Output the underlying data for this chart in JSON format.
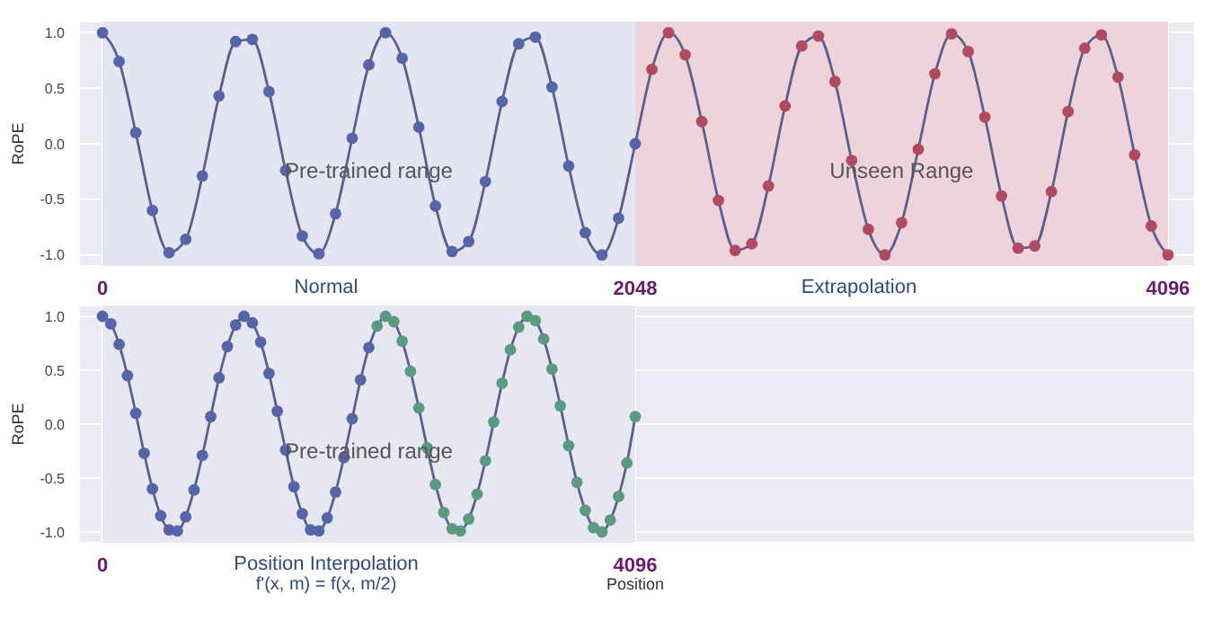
{
  "chart_data": [
    {
      "type": "scatter",
      "ylabel": "RoPE",
      "xlim": [
        -90,
        4200
      ],
      "xticks": [
        0,
        2048,
        4096
      ],
      "ylim": [
        -1.1,
        1.1
      ],
      "yticks": [
        {
          "value": -1,
          "label": "-1.0"
        },
        {
          "value": -0.5,
          "label": "-0.5"
        },
        {
          "value": 0,
          "label": "0.0"
        },
        {
          "value": 0.5,
          "label": "0.5"
        },
        {
          "value": 1,
          "label": "1.0"
        }
      ],
      "grid": true,
      "marker": "circle",
      "bands": [
        {
          "axis": "x",
          "from": 0,
          "to": 2048,
          "label": "Pre-trained range",
          "color": "#e3e5f2"
        },
        {
          "axis": "x",
          "from": 2048,
          "to": 4096,
          "label": "Unseen Range",
          "color": "#efd3da"
        }
      ],
      "annotations": [
        "Normal",
        "Extrapolation"
      ],
      "series": [
        {
          "type": "line",
          "marker": "none",
          "color": "#59608f",
          "x": [
            0,
            64,
            128,
            192,
            256,
            320,
            384,
            448,
            512,
            576,
            640,
            704,
            768,
            832,
            896,
            960,
            1024,
            1088,
            1152,
            1216,
            1280,
            1344,
            1408,
            1472,
            1536,
            1600,
            1664,
            1728,
            1792,
            1856,
            1920,
            1984,
            2048,
            2112,
            2176,
            2240,
            2304,
            2368,
            2432,
            2496,
            2560,
            2624,
            2688,
            2752,
            2816,
            2880,
            2944,
            3008,
            3072,
            3136,
            3200,
            3264,
            3328,
            3392,
            3456,
            3520,
            3584,
            3648,
            3712,
            3776,
            3840,
            3904,
            3968,
            4032,
            4096
          ],
          "values": [
            1,
            0.74,
            0.1,
            -0.6,
            -0.98,
            -0.86,
            -0.29,
            0.43,
            0.92,
            0.94,
            0.47,
            -0.24,
            -0.83,
            -0.99,
            -0.63,
            0.05,
            0.71,
            1.0,
            0.77,
            0.15,
            -0.56,
            -0.97,
            -0.88,
            -0.34,
            0.38,
            0.9,
            0.96,
            0.51,
            -0.2,
            -0.8,
            -1.0,
            -0.67,
            0.0,
            0.67,
            1.0,
            0.8,
            0.2,
            -0.51,
            -0.96,
            -0.9,
            -0.38,
            0.34,
            0.88,
            0.97,
            0.56,
            -0.15,
            -0.77,
            -1.0,
            -0.71,
            -0.05,
            0.63,
            0.99,
            0.83,
            0.24,
            -0.47,
            -0.94,
            -0.92,
            -0.43,
            0.29,
            0.86,
            0.98,
            0.6,
            -0.1,
            -0.74,
            -1
          ]
        },
        {
          "color": "#5565a8",
          "x": [
            0,
            64,
            128,
            192,
            256,
            320,
            384,
            448,
            512,
            576,
            640,
            704,
            768,
            832,
            896,
            960,
            1024,
            1088,
            1152,
            1216,
            1280,
            1344,
            1408,
            1472,
            1536,
            1600,
            1664,
            1728,
            1792,
            1856,
            1920,
            1984,
            2048
          ],
          "values": [
            1,
            0.74,
            0.1,
            -0.6,
            -0.98,
            -0.86,
            -0.29,
            0.43,
            0.92,
            0.94,
            0.47,
            -0.24,
            -0.83,
            -0.99,
            -0.63,
            0.05,
            0.71,
            1.0,
            0.77,
            0.15,
            -0.56,
            -0.97,
            -0.88,
            -0.34,
            0.38,
            0.9,
            0.96,
            0.51,
            -0.2,
            -0.8,
            -1.0,
            -0.67,
            0.0
          ]
        },
        {
          "color": "#b04a62",
          "x": [
            2112,
            2176,
            2240,
            2304,
            2368,
            2432,
            2496,
            2560,
            2624,
            2688,
            2752,
            2816,
            2880,
            2944,
            3008,
            3072,
            3136,
            3200,
            3264,
            3328,
            3392,
            3456,
            3520,
            3584,
            3648,
            3712,
            3776,
            3840,
            3904,
            3968,
            4032,
            4096
          ],
          "values": [
            0.67,
            1.0,
            0.8,
            0.2,
            -0.51,
            -0.96,
            -0.9,
            -0.38,
            0.34,
            0.88,
            0.97,
            0.56,
            -0.15,
            -0.77,
            -1.0,
            -0.71,
            -0.05,
            0.63,
            0.99,
            0.83,
            0.24,
            -0.47,
            -0.94,
            -0.92,
            -0.43,
            0.29,
            0.86,
            0.98,
            0.6,
            -0.1,
            -0.74,
            -1
          ]
        }
      ]
    },
    {
      "type": "scatter",
      "ylabel": "RoPE",
      "xlabel": "Position",
      "xlim": [
        -180,
        8400
      ],
      "xticks": [
        0,
        4096
      ],
      "ylim": [
        -1.1,
        1.1
      ],
      "yticks": [
        {
          "value": -1,
          "label": "-1.0"
        },
        {
          "value": -0.5,
          "label": "-0.5"
        },
        {
          "value": 0,
          "label": "0.0"
        },
        {
          "value": 0.5,
          "label": "0.5"
        },
        {
          "value": 1,
          "label": "1.0"
        }
      ],
      "grid": true,
      "marker": "circle",
      "bands": [
        {
          "axis": "x",
          "from": 0,
          "to": 4096,
          "label": "Pre-trained range",
          "color": "#e6e7f1"
        }
      ],
      "annotations": [
        "Position Interpolation",
        "f'(x, m) = f(x, m/2)"
      ],
      "series": [
        {
          "type": "line",
          "marker": "none",
          "color": "#59608f",
          "x": [
            0,
            64,
            128,
            192,
            256,
            320,
            384,
            448,
            512,
            576,
            640,
            704,
            768,
            832,
            896,
            960,
            1024,
            1088,
            1152,
            1216,
            1280,
            1344,
            1408,
            1472,
            1536,
            1600,
            1664,
            1728,
            1792,
            1856,
            1920,
            1984,
            2048,
            2112,
            2176,
            2240,
            2304,
            2368,
            2432,
            2496,
            2560,
            2624,
            2688,
            2752,
            2816,
            2880,
            2944,
            3008,
            3072,
            3136,
            3200,
            3264,
            3328,
            3392,
            3456,
            3520,
            3584,
            3648,
            3712,
            3776,
            3840,
            3904,
            3968,
            4032,
            4096
          ],
          "values": [
            1,
            0.93,
            0.74,
            0.45,
            0.1,
            -0.27,
            -0.6,
            -0.85,
            -0.98,
            -0.99,
            -0.86,
            -0.61,
            -0.29,
            0.07,
            0.43,
            0.72,
            0.92,
            1.0,
            0.94,
            0.76,
            0.47,
            0.12,
            -0.24,
            -0.58,
            -0.83,
            -0.98,
            -0.99,
            -0.87,
            -0.63,
            -0.31,
            0.05,
            0.41,
            0.71,
            0.91,
            1.0,
            0.95,
            0.77,
            0.49,
            0.15,
            -0.22,
            -0.56,
            -0.82,
            -0.97,
            -0.99,
            -0.88,
            -0.65,
            -0.34,
            0.02,
            0.38,
            0.69,
            0.9,
            1.0,
            0.96,
            0.79,
            0.51,
            0.17,
            -0.2,
            -0.54,
            -0.8,
            -0.96,
            -1.0,
            -0.89,
            -0.67,
            -0.36,
            0.07
          ]
        },
        {
          "color": "#5565a8",
          "x": [
            0,
            64,
            128,
            192,
            256,
            320,
            384,
            448,
            512,
            576,
            640,
            704,
            768,
            832,
            896,
            960,
            1024,
            1088,
            1152,
            1216,
            1280,
            1344,
            1408,
            1472,
            1536,
            1600,
            1664,
            1728,
            1792,
            1856,
            1920,
            1984,
            2048
          ],
          "values": [
            1,
            0.93,
            0.74,
            0.45,
            0.1,
            -0.27,
            -0.6,
            -0.85,
            -0.98,
            -0.99,
            -0.86,
            -0.61,
            -0.29,
            0.07,
            0.43,
            0.72,
            0.92,
            1.0,
            0.94,
            0.76,
            0.47,
            0.12,
            -0.24,
            -0.58,
            -0.83,
            -0.98,
            -0.99,
            -0.87,
            -0.63,
            -0.31,
            0.05,
            0.41,
            0.71
          ]
        },
        {
          "color": "#5a9a7e",
          "x": [
            2112,
            2176,
            2240,
            2304,
            2368,
            2432,
            2496,
            2560,
            2624,
            2688,
            2752,
            2816,
            2880,
            2944,
            3008,
            3072,
            3136,
            3200,
            3264,
            3328,
            3392,
            3456,
            3520,
            3584,
            3648,
            3712,
            3776,
            3840,
            3904,
            3968,
            4032,
            4096
          ],
          "values": [
            0.91,
            1.0,
            0.95,
            0.77,
            0.49,
            0.15,
            -0.22,
            -0.56,
            -0.82,
            -0.97,
            -0.99,
            -0.88,
            -0.65,
            -0.34,
            0.02,
            0.38,
            0.69,
            0.9,
            1.0,
            0.96,
            0.79,
            0.51,
            0.17,
            -0.2,
            -0.54,
            -0.8,
            -0.96,
            -1.0,
            -0.89,
            -0.67,
            -0.36,
            0.07
          ]
        }
      ]
    }
  ]
}
